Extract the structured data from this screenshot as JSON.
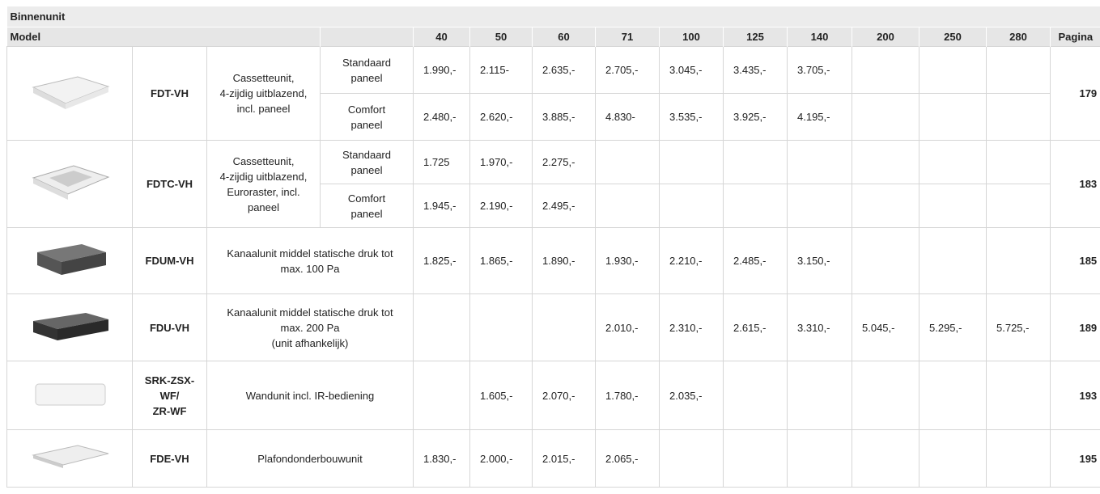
{
  "header": {
    "title": "Binnenunit",
    "columns": [
      "Model",
      "40",
      "50",
      "60",
      "71",
      "100",
      "125",
      "140",
      "200",
      "250",
      "280",
      "Pagina"
    ]
  },
  "rows": [
    {
      "model": [
        "FDT-VH"
      ],
      "description": [
        "Cassetteunit,",
        "4-zijdig uitblazend,",
        "incl. paneel"
      ],
      "page": "179",
      "variants": [
        {
          "panel": [
            "Standaard",
            "paneel"
          ],
          "prices": [
            "1.990,-",
            "2.115-",
            "2.635,-",
            "2.705,-",
            "3.045,-",
            "3.435,-",
            "3.705,-",
            null,
            null,
            null
          ]
        },
        {
          "panel": [
            "Comfort",
            "paneel"
          ],
          "prices": [
            "2.480,-",
            "2.620,-",
            "3.885,-",
            "4.830-",
            "3.535,-",
            "3.925,-",
            "4.195,-",
            null,
            null,
            null
          ]
        }
      ]
    },
    {
      "model": [
        "FDTC-VH"
      ],
      "description": [
        "Cassetteunit,",
        "4-zijdig uitblazend,",
        "Euroraster, incl.",
        "paneel"
      ],
      "page": "183",
      "variants": [
        {
          "panel": [
            "Standaard",
            "paneel"
          ],
          "prices": [
            "1.725",
            "1.970,-",
            "2.275,-",
            null,
            null,
            null,
            null,
            null,
            null,
            null
          ]
        },
        {
          "panel": [
            "Comfort",
            "paneel"
          ],
          "prices": [
            "1.945,-",
            "2.190,-",
            "2.495,-",
            null,
            null,
            null,
            null,
            null,
            null,
            null
          ]
        }
      ]
    },
    {
      "model": [
        "FDUM-VH"
      ],
      "description": [
        "Kanaalunit middel statische druk tot",
        "max. 100 Pa"
      ],
      "page": "185",
      "variants": [
        {
          "panel": null,
          "prices": [
            "1.825,-",
            "1.865,-",
            "1.890,-",
            "1.930,-",
            "2.210,-",
            "2.485,-",
            "3.150,-",
            null,
            null,
            null
          ]
        }
      ]
    },
    {
      "model": [
        "FDU-VH"
      ],
      "description": [
        "Kanaalunit middel statische druk tot",
        "max. 200 Pa",
        "(unit afhankelijk)"
      ],
      "page": "189",
      "variants": [
        {
          "panel": null,
          "prices": [
            null,
            null,
            null,
            "2.010,-",
            "2.310,-",
            "2.615,-",
            "3.310,-",
            "5.045,-",
            "5.295,-",
            "5.725,-"
          ]
        }
      ]
    },
    {
      "model": [
        "SRK-ZSX-",
        "WF/",
        "ZR-WF"
      ],
      "description": [
        "Wandunit incl. IR-bediening"
      ],
      "page": "193",
      "variants": [
        {
          "panel": null,
          "prices": [
            null,
            "1.605,-",
            "2.070,-",
            "1.780,-",
            "2.035,-",
            null,
            null,
            null,
            null,
            null
          ]
        }
      ]
    },
    {
      "model": [
        "FDE-VH"
      ],
      "description": [
        "Plafondonderbouwunit"
      ],
      "page": "195",
      "variants": [
        {
          "panel": null,
          "prices": [
            "1.830,-",
            "2.000,-",
            "2.015,-",
            "2.065,-",
            null,
            null,
            null,
            null,
            null,
            null
          ]
        }
      ]
    }
  ]
}
